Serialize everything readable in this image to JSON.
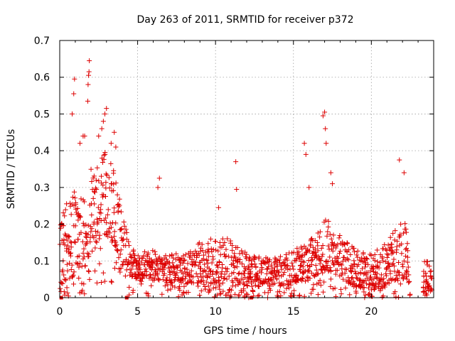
{
  "chart_data": {
    "type": "scatter",
    "title": "Day 263 of 2011, SRMTID for receiver p372",
    "xlabel": "GPS time / hours",
    "ylabel": "SRMTID / TECUs",
    "xlim": [
      0,
      24
    ],
    "ylim": [
      0,
      0.7
    ],
    "x_ticks": [
      0,
      5,
      10,
      15,
      20
    ],
    "x_tick_labels": [
      "0",
      "5",
      "10",
      "15",
      "20"
    ],
    "y_ticks": [
      0,
      0.1,
      0.2,
      0.3,
      0.4,
      0.5,
      0.6,
      0.7
    ],
    "y_tick_labels": [
      "0",
      "0.1",
      "0.2",
      "0.3",
      "0.4",
      "0.5",
      "0.6",
      "0.7"
    ],
    "grid": true,
    "marker": "+",
    "color": "#dd0000",
    "square_markers": [
      {
        "x": 0.1,
        "y": 0.0
      },
      {
        "x": 4.3,
        "y": 0.0
      },
      {
        "x": 12.3,
        "y": 0.0
      }
    ],
    "envelope": [
      [
        0.0,
        0.03,
        0.2
      ],
      [
        0.5,
        0.05,
        0.28
      ],
      [
        1.0,
        0.06,
        0.3
      ],
      [
        1.5,
        0.08,
        0.33
      ],
      [
        2.0,
        0.1,
        0.35
      ],
      [
        2.5,
        0.15,
        0.38
      ],
      [
        3.0,
        0.17,
        0.4
      ],
      [
        3.5,
        0.14,
        0.34
      ],
      [
        4.0,
        0.09,
        0.24
      ],
      [
        4.5,
        0.06,
        0.14
      ],
      [
        5.0,
        0.05,
        0.12
      ],
      [
        6.0,
        0.05,
        0.13
      ],
      [
        7.0,
        0.04,
        0.12
      ],
      [
        8.0,
        0.04,
        0.12
      ],
      [
        9.0,
        0.04,
        0.15
      ],
      [
        10.0,
        0.04,
        0.17
      ],
      [
        11.0,
        0.04,
        0.16
      ],
      [
        12.0,
        0.03,
        0.12
      ],
      [
        13.0,
        0.03,
        0.11
      ],
      [
        14.0,
        0.03,
        0.11
      ],
      [
        15.0,
        0.04,
        0.13
      ],
      [
        16.0,
        0.05,
        0.15
      ],
      [
        17.0,
        0.07,
        0.22
      ],
      [
        17.5,
        0.07,
        0.2
      ],
      [
        18.0,
        0.05,
        0.17
      ],
      [
        19.0,
        0.03,
        0.13
      ],
      [
        20.0,
        0.02,
        0.12
      ],
      [
        21.0,
        0.03,
        0.15
      ],
      [
        22.0,
        0.05,
        0.22
      ],
      [
        22.3,
        0.05,
        0.2
      ],
      [
        22.5,
        0.0,
        0.0
      ],
      [
        23.3,
        0.0,
        0.0
      ],
      [
        23.4,
        0.02,
        0.1
      ],
      [
        23.9,
        0.02,
        0.1
      ]
    ],
    "points": [
      {
        "x": 0.8,
        "y": 0.5
      },
      {
        "x": 0.9,
        "y": 0.555
      },
      {
        "x": 0.95,
        "y": 0.595
      },
      {
        "x": 1.3,
        "y": 0.42
      },
      {
        "x": 1.5,
        "y": 0.44
      },
      {
        "x": 1.6,
        "y": 0.44
      },
      {
        "x": 1.8,
        "y": 0.535
      },
      {
        "x": 1.82,
        "y": 0.58
      },
      {
        "x": 1.85,
        "y": 0.605
      },
      {
        "x": 1.88,
        "y": 0.615
      },
      {
        "x": 1.9,
        "y": 0.645
      },
      {
        "x": 2.5,
        "y": 0.44
      },
      {
        "x": 2.7,
        "y": 0.46
      },
      {
        "x": 2.8,
        "y": 0.48
      },
      {
        "x": 2.9,
        "y": 0.5
      },
      {
        "x": 3.0,
        "y": 0.515
      },
      {
        "x": 3.3,
        "y": 0.42
      },
      {
        "x": 3.5,
        "y": 0.45
      },
      {
        "x": 3.6,
        "y": 0.41
      },
      {
        "x": 6.3,
        "y": 0.3
      },
      {
        "x": 6.4,
        "y": 0.325
      },
      {
        "x": 10.2,
        "y": 0.245
      },
      {
        "x": 11.3,
        "y": 0.37
      },
      {
        "x": 11.35,
        "y": 0.295
      },
      {
        "x": 15.7,
        "y": 0.42
      },
      {
        "x": 15.8,
        "y": 0.39
      },
      {
        "x": 16.0,
        "y": 0.3
      },
      {
        "x": 16.9,
        "y": 0.495
      },
      {
        "x": 17.0,
        "y": 0.505
      },
      {
        "x": 17.05,
        "y": 0.46
      },
      {
        "x": 17.1,
        "y": 0.42
      },
      {
        "x": 17.4,
        "y": 0.34
      },
      {
        "x": 17.5,
        "y": 0.31
      },
      {
        "x": 21.8,
        "y": 0.375
      },
      {
        "x": 22.1,
        "y": 0.34
      }
    ]
  }
}
